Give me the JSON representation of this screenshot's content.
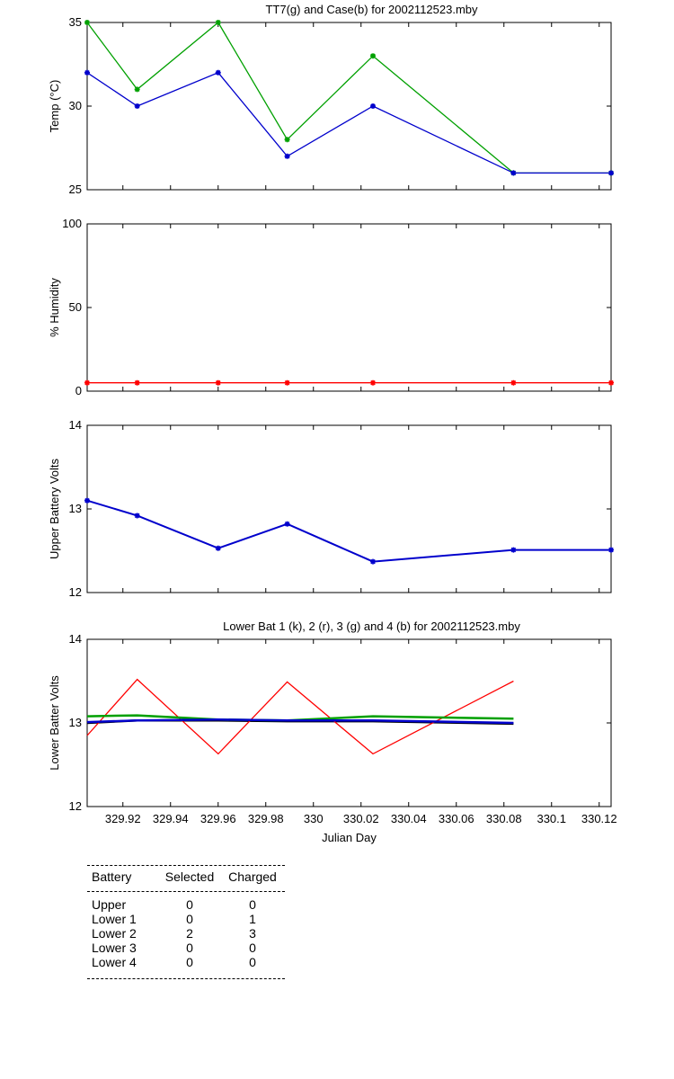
{
  "chart_data": [
    {
      "type": "line",
      "title": "TT7(g) and Case(b) for 2002112523.mby",
      "xlabel": "",
      "ylabel": "Temp  (°C)",
      "xlim": [
        329.905,
        330.125
      ],
      "ylim": [
        25,
        35
      ],
      "yticks": [
        25,
        30,
        35
      ],
      "x": [
        329.905,
        329.926,
        329.96,
        329.989,
        330.025,
        330.084,
        330.125
      ],
      "series": [
        {
          "color": "#00a000",
          "marker": "star",
          "values": [
            35,
            31,
            35,
            28,
            33,
            26,
            26
          ]
        },
        {
          "color": "#0000cc",
          "marker": "star",
          "values": [
            32,
            30,
            32,
            27,
            30,
            26,
            26
          ]
        }
      ]
    },
    {
      "type": "line",
      "title": "",
      "xlabel": "",
      "ylabel": "% Humidity",
      "xlim": [
        329.905,
        330.125
      ],
      "ylim": [
        0,
        100
      ],
      "yticks": [
        0,
        50,
        100
      ],
      "x": [
        329.905,
        329.926,
        329.96,
        329.989,
        330.025,
        330.084,
        330.125
      ],
      "series": [
        {
          "color": "#ff0000",
          "marker": "star",
          "values": [
            5,
            5,
            5,
            5,
            5,
            5,
            5
          ]
        }
      ]
    },
    {
      "type": "line",
      "title": "",
      "xlabel": "",
      "ylabel": "Upper Battery Volts",
      "xlim": [
        329.905,
        330.125
      ],
      "ylim": [
        12,
        14
      ],
      "yticks": [
        12,
        13,
        14
      ],
      "x": [
        329.905,
        329.926,
        329.96,
        329.989,
        330.025,
        330.084,
        330.125
      ],
      "series": [
        {
          "color": "#0000cc",
          "marker": "star",
          "values": [
            13.1,
            12.92,
            12.53,
            12.82,
            12.37,
            12.51,
            12.51
          ]
        }
      ]
    },
    {
      "type": "line",
      "title": "Lower Bat 1 (k), 2 (r), 3 (g) and 4 (b) for 2002112523.mby",
      "xlabel": "Julian Day",
      "ylabel": "Lower Batter Volts",
      "xlim": [
        329.905,
        330.125
      ],
      "ylim": [
        12,
        14
      ],
      "yticks": [
        12,
        13,
        14
      ],
      "xticks": [
        329.92,
        329.94,
        329.96,
        329.98,
        330,
        330.02,
        330.04,
        330.06,
        330.08,
        330.1,
        330.12
      ],
      "xticklabels": [
        "329.92",
        "329.94",
        "329.96",
        "329.98",
        "330",
        "330.02",
        "330.04",
        "330.06",
        "330.08",
        "330.1",
        "330.12"
      ],
      "x": [
        329.905,
        329.926,
        329.96,
        329.989,
        330.025,
        330.084
      ],
      "series": [
        {
          "color": "#000000",
          "values": [
            13.0,
            13.03,
            13.03,
            13.02,
            13.02,
            12.99
          ]
        },
        {
          "color": "#ff0000",
          "values": [
            12.85,
            13.52,
            12.63,
            13.49,
            12.63,
            13.5
          ]
        },
        {
          "color": "#00a000",
          "values": [
            13.08,
            13.09,
            13.04,
            13.03,
            13.08,
            13.05
          ]
        },
        {
          "color": "#0000cc",
          "values": [
            13.01,
            13.03,
            13.04,
            13.03,
            13.03,
            13.0
          ]
        }
      ]
    }
  ],
  "battery_table": {
    "headers": [
      "Battery",
      "Selected",
      "Charged"
    ],
    "rows": [
      {
        "battery": "Upper",
        "selected": "0",
        "charged": "0"
      },
      {
        "battery": "Lower 1",
        "selected": "0",
        "charged": "1"
      },
      {
        "battery": "Lower 2",
        "selected": "2",
        "charged": "3"
      },
      {
        "battery": "Lower 3",
        "selected": "0",
        "charged": "0"
      },
      {
        "battery": "Lower 4",
        "selected": "0",
        "charged": "0"
      }
    ]
  }
}
